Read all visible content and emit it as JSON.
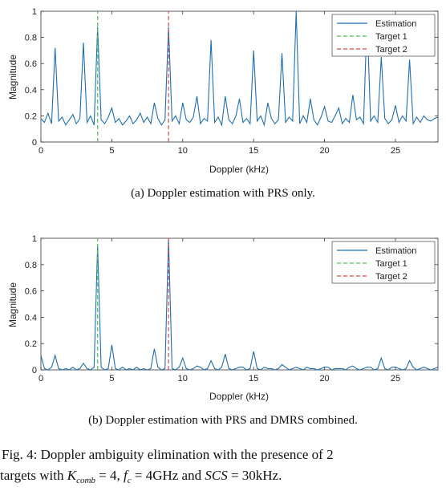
{
  "figure": {
    "caption_line1": "Fig. 4: Doppler ambiguity elimination with the presence of 2",
    "caption_line2_a": "targets with ",
    "caption_line2_k": "K",
    "caption_line2_comb": "comb",
    "caption_line2_b": " = 4, ",
    "caption_line2_f": "f",
    "caption_line2_c": "c",
    "caption_line2_c2": " = 4GHz and ",
    "caption_line2_scs": "SCS",
    "caption_line2_d": " = 30kHz."
  },
  "chart_data": [
    {
      "type": "line",
      "subcaption": "(a) Doppler estimation with PRS only.",
      "xlabel": "Doppler (kHz)",
      "ylabel": "Magnitude",
      "xlim": [
        0,
        28
      ],
      "ylim": [
        0,
        1
      ],
      "xticks": [
        "0",
        "5",
        "10",
        "15",
        "20",
        "25"
      ],
      "yticks": [
        "0",
        "0.2",
        "0.4",
        "0.6",
        "0.8",
        "1"
      ],
      "legend_position": "top-right",
      "series": [
        {
          "name": "Estimation",
          "style": "solid",
          "color": "#1f6fb4",
          "x": [
            0,
            0.25,
            0.5,
            0.75,
            1,
            1.25,
            1.5,
            1.75,
            2,
            2.25,
            2.5,
            2.75,
            3,
            3.25,
            3.5,
            3.75,
            4,
            4.25,
            4.5,
            4.75,
            5,
            5.25,
            5.5,
            5.75,
            6,
            6.25,
            6.5,
            6.75,
            7,
            7.25,
            7.5,
            7.75,
            8,
            8.25,
            8.5,
            8.75,
            9,
            9.25,
            9.5,
            9.75,
            10,
            10.25,
            10.5,
            10.75,
            11,
            11.25,
            11.5,
            11.75,
            12,
            12.25,
            12.5,
            12.75,
            13,
            13.25,
            13.5,
            13.75,
            14,
            14.25,
            14.5,
            14.75,
            15,
            15.25,
            15.5,
            15.75,
            16,
            16.25,
            16.5,
            16.75,
            17,
            17.25,
            17.5,
            17.75,
            18,
            18.25,
            18.5,
            18.75,
            19,
            19.25,
            19.5,
            19.75,
            20,
            20.25,
            20.5,
            20.75,
            21,
            21.25,
            21.5,
            21.75,
            22,
            22.25,
            22.5,
            22.75,
            23,
            23.25,
            23.5,
            23.75,
            24,
            24.25,
            24.5,
            24.75,
            25,
            25.25,
            25.5,
            25.75,
            26,
            26.25,
            26.5,
            26.75,
            27,
            27.25,
            27.5,
            27.75,
            28
          ],
          "y": [
            0.18,
            0.15,
            0.22,
            0.14,
            0.72,
            0.16,
            0.19,
            0.13,
            0.17,
            0.21,
            0.14,
            0.18,
            0.76,
            0.15,
            0.2,
            0.13,
            0.88,
            0.17,
            0.14,
            0.19,
            0.26,
            0.15,
            0.18,
            0.13,
            0.16,
            0.2,
            0.14,
            0.17,
            0.22,
            0.15,
            0.19,
            0.14,
            0.3,
            0.18,
            0.13,
            0.17,
            0.88,
            0.16,
            0.2,
            0.14,
            0.3,
            0.17,
            0.15,
            0.19,
            0.35,
            0.14,
            0.18,
            0.16,
            0.78,
            0.15,
            0.19,
            0.13,
            0.35,
            0.17,
            0.14,
            0.2,
            0.33,
            0.15,
            0.18,
            0.14,
            0.7,
            0.16,
            0.2,
            0.13,
            0.3,
            0.18,
            0.14,
            0.17,
            0.68,
            0.15,
            0.19,
            0.16,
            1.0,
            0.14,
            0.2,
            0.15,
            0.33,
            0.17,
            0.13,
            0.19,
            0.27,
            0.16,
            0.15,
            0.2,
            0.26,
            0.14,
            0.18,
            0.15,
            0.36,
            0.17,
            0.19,
            0.14,
            0.96,
            0.16,
            0.2,
            0.15,
            0.65,
            0.18,
            0.14,
            0.17,
            0.28,
            0.15,
            0.2,
            0.16,
            0.63,
            0.14,
            0.19,
            0.15,
            0.2,
            0.17,
            0.16,
            0.18,
            0.19
          ]
        },
        {
          "name": "Target 1",
          "style": "dashed",
          "color": "#4cc24c",
          "x": 4,
          "y": 1
        },
        {
          "name": "Target 2",
          "style": "dashed",
          "color": "#e04848",
          "x": 9,
          "y": 1
        }
      ]
    },
    {
      "type": "line",
      "subcaption": "(b) Doppler estimation with PRS and DMRS combined.",
      "xlabel": "Doppler (kHz)",
      "ylabel": "Magnitude",
      "xlim": [
        0,
        28
      ],
      "ylim": [
        0,
        1
      ],
      "xticks": [
        "0",
        "5",
        "10",
        "15",
        "20",
        "25"
      ],
      "yticks": [
        "0",
        "0.2",
        "0.4",
        "0.6",
        "0.8",
        "1"
      ],
      "legend_position": "top-right",
      "series": [
        {
          "name": "Estimation",
          "style": "solid",
          "color": "#1f6fb4",
          "x": [
            0,
            0.25,
            0.5,
            0.75,
            1,
            1.25,
            1.5,
            1.75,
            2,
            2.25,
            2.5,
            2.75,
            3,
            3.25,
            3.5,
            3.75,
            4,
            4.25,
            4.5,
            4.75,
            5,
            5.25,
            5.5,
            5.75,
            6,
            6.25,
            6.5,
            6.75,
            7,
            7.25,
            7.5,
            7.75,
            8,
            8.25,
            8.5,
            8.75,
            9,
            9.25,
            9.5,
            9.75,
            10,
            10.25,
            10.5,
            10.75,
            11,
            11.25,
            11.5,
            11.75,
            12,
            12.25,
            12.5,
            12.75,
            13,
            13.25,
            13.5,
            13.75,
            14,
            14.25,
            14.5,
            14.75,
            15,
            15.25,
            15.5,
            15.75,
            16,
            16.25,
            16.5,
            16.75,
            17,
            17.25,
            17.5,
            17.75,
            18,
            18.25,
            18.5,
            18.75,
            19,
            19.25,
            19.5,
            19.75,
            20,
            20.25,
            20.5,
            20.75,
            21,
            21.25,
            21.5,
            21.75,
            22,
            22.25,
            22.5,
            22.75,
            23,
            23.25,
            23.5,
            23.75,
            24,
            24.25,
            24.5,
            24.75,
            25,
            25.25,
            25.5,
            25.75,
            26,
            26.25,
            26.5,
            26.75,
            27,
            27.25,
            27.5,
            27.75,
            28
          ],
          "y": [
            0.11,
            0.01,
            0.0,
            0.02,
            0.11,
            0.01,
            0.0,
            0.01,
            0.0,
            0.02,
            0.0,
            0.01,
            0.05,
            0.01,
            0.0,
            0.02,
            0.95,
            0.02,
            0.0,
            0.01,
            0.19,
            0.01,
            0.0,
            0.02,
            0.0,
            0.01,
            0.0,
            0.02,
            0.0,
            0.01,
            0.0,
            0.01,
            0.16,
            0.02,
            0.0,
            0.01,
            1.0,
            0.01,
            0.0,
            0.02,
            0.09,
            0.01,
            0.0,
            0.01,
            0.03,
            0.02,
            0.0,
            0.01,
            0.07,
            0.01,
            0.0,
            0.02,
            0.12,
            0.01,
            0.0,
            0.01,
            0.02,
            0.02,
            0.0,
            0.01,
            0.14,
            0.01,
            0.0,
            0.02,
            0.01,
            0.01,
            0.0,
            0.01,
            0.04,
            0.02,
            0.0,
            0.01,
            0.02,
            0.01,
            0.0,
            0.02,
            0.01,
            0.01,
            0.0,
            0.01,
            0.02,
            0.02,
            0.0,
            0.01,
            0.01,
            0.01,
            0.0,
            0.02,
            0.03,
            0.01,
            0.0,
            0.01,
            0.02,
            0.02,
            0.0,
            0.01,
            0.09,
            0.01,
            0.0,
            0.02,
            0.02,
            0.01,
            0.0,
            0.01,
            0.07,
            0.02,
            0.0,
            0.01,
            0.02,
            0.01,
            0.0,
            0.01,
            0.02
          ]
        },
        {
          "name": "Target 1",
          "style": "dashed",
          "color": "#4cc24c",
          "x": 4,
          "y": 1
        },
        {
          "name": "Target 2",
          "style": "dashed",
          "color": "#e04848",
          "x": 9,
          "y": 1
        }
      ]
    }
  ]
}
